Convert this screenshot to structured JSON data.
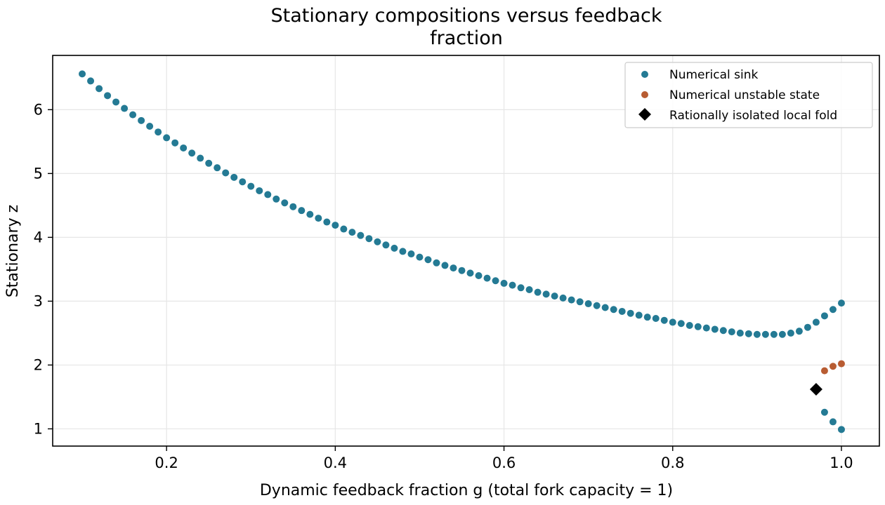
{
  "chart_data": {
    "type": "scatter",
    "title": [
      "Stationary compositions versus feedback",
      "fraction"
    ],
    "xlabel": "Dynamic feedback fraction g (total fork capacity = 1)",
    "ylabel": "Stationary z",
    "xlim": [
      0.065,
      1.045
    ],
    "ylim": [
      0.73,
      6.85
    ],
    "x_ticks": [
      0.2,
      0.4,
      0.6,
      0.8,
      1.0
    ],
    "x_tick_labels": [
      "0.2",
      "0.4",
      "0.6",
      "0.8",
      "1.0"
    ],
    "y_ticks": [
      1,
      2,
      3,
      4,
      5,
      6
    ],
    "y_tick_labels": [
      "1",
      "2",
      "3",
      "4",
      "5",
      "6"
    ],
    "grid": true,
    "legend": {
      "placement": "top-right",
      "entries": [
        "Numerical sink",
        "Numerical unstable state",
        "Rationally isolated local fold"
      ]
    },
    "series": [
      {
        "name": "Numerical sink",
        "color": "#247a94",
        "marker": "circle",
        "x": [
          0.1,
          0.11,
          0.12,
          0.13,
          0.14,
          0.15,
          0.16,
          0.17,
          0.18,
          0.19,
          0.2,
          0.21,
          0.22,
          0.23,
          0.24,
          0.25,
          0.26,
          0.27,
          0.28,
          0.29,
          0.3,
          0.31,
          0.32,
          0.33,
          0.34,
          0.35,
          0.36,
          0.37,
          0.38,
          0.39,
          0.4,
          0.41,
          0.42,
          0.43,
          0.44,
          0.45,
          0.46,
          0.47,
          0.48,
          0.49,
          0.5,
          0.51,
          0.52,
          0.53,
          0.54,
          0.55,
          0.56,
          0.57,
          0.58,
          0.59,
          0.6,
          0.61,
          0.62,
          0.63,
          0.64,
          0.65,
          0.66,
          0.67,
          0.68,
          0.69,
          0.7,
          0.71,
          0.72,
          0.73,
          0.74,
          0.75,
          0.76,
          0.77,
          0.78,
          0.79,
          0.8,
          0.81,
          0.82,
          0.83,
          0.84,
          0.85,
          0.86,
          0.87,
          0.88,
          0.89,
          0.9,
          0.91,
          0.92,
          0.93,
          0.94,
          0.95,
          0.96,
          0.97,
          0.98,
          0.99,
          1.0,
          0.98,
          0.99,
          1.0
        ],
        "y": [
          6.56,
          6.45,
          6.33,
          6.22,
          6.12,
          6.02,
          5.92,
          5.83,
          5.74,
          5.65,
          5.56,
          5.48,
          5.4,
          5.32,
          5.24,
          5.16,
          5.09,
          5.01,
          4.94,
          4.87,
          4.8,
          4.73,
          4.67,
          4.6,
          4.54,
          4.48,
          4.42,
          4.36,
          4.3,
          4.24,
          4.19,
          4.13,
          4.08,
          4.03,
          3.98,
          3.93,
          3.88,
          3.83,
          3.78,
          3.74,
          3.69,
          3.65,
          3.6,
          3.56,
          3.52,
          3.48,
          3.44,
          3.4,
          3.36,
          3.32,
          3.28,
          3.25,
          3.21,
          3.18,
          3.14,
          3.11,
          3.08,
          3.05,
          3.02,
          2.99,
          2.96,
          2.93,
          2.9,
          2.87,
          2.84,
          2.81,
          2.78,
          2.75,
          2.73,
          2.7,
          2.67,
          2.65,
          2.62,
          2.6,
          2.58,
          2.56,
          2.54,
          2.52,
          2.5,
          2.49,
          2.48,
          2.48,
          2.48,
          2.48,
          2.5,
          2.53,
          2.59,
          2.67,
          2.77,
          2.87,
          2.97,
          1.26,
          1.11,
          0.99
        ]
      },
      {
        "name": "Numerical unstable state",
        "color": "#b85c32",
        "marker": "circle",
        "x": [
          0.98,
          0.99,
          1.0
        ],
        "y": [
          1.91,
          1.98,
          2.02
        ]
      },
      {
        "name": "Rationally isolated local fold",
        "color": "#000000",
        "marker": "diamond",
        "x": [
          0.97
        ],
        "y": [
          1.62
        ]
      }
    ]
  }
}
